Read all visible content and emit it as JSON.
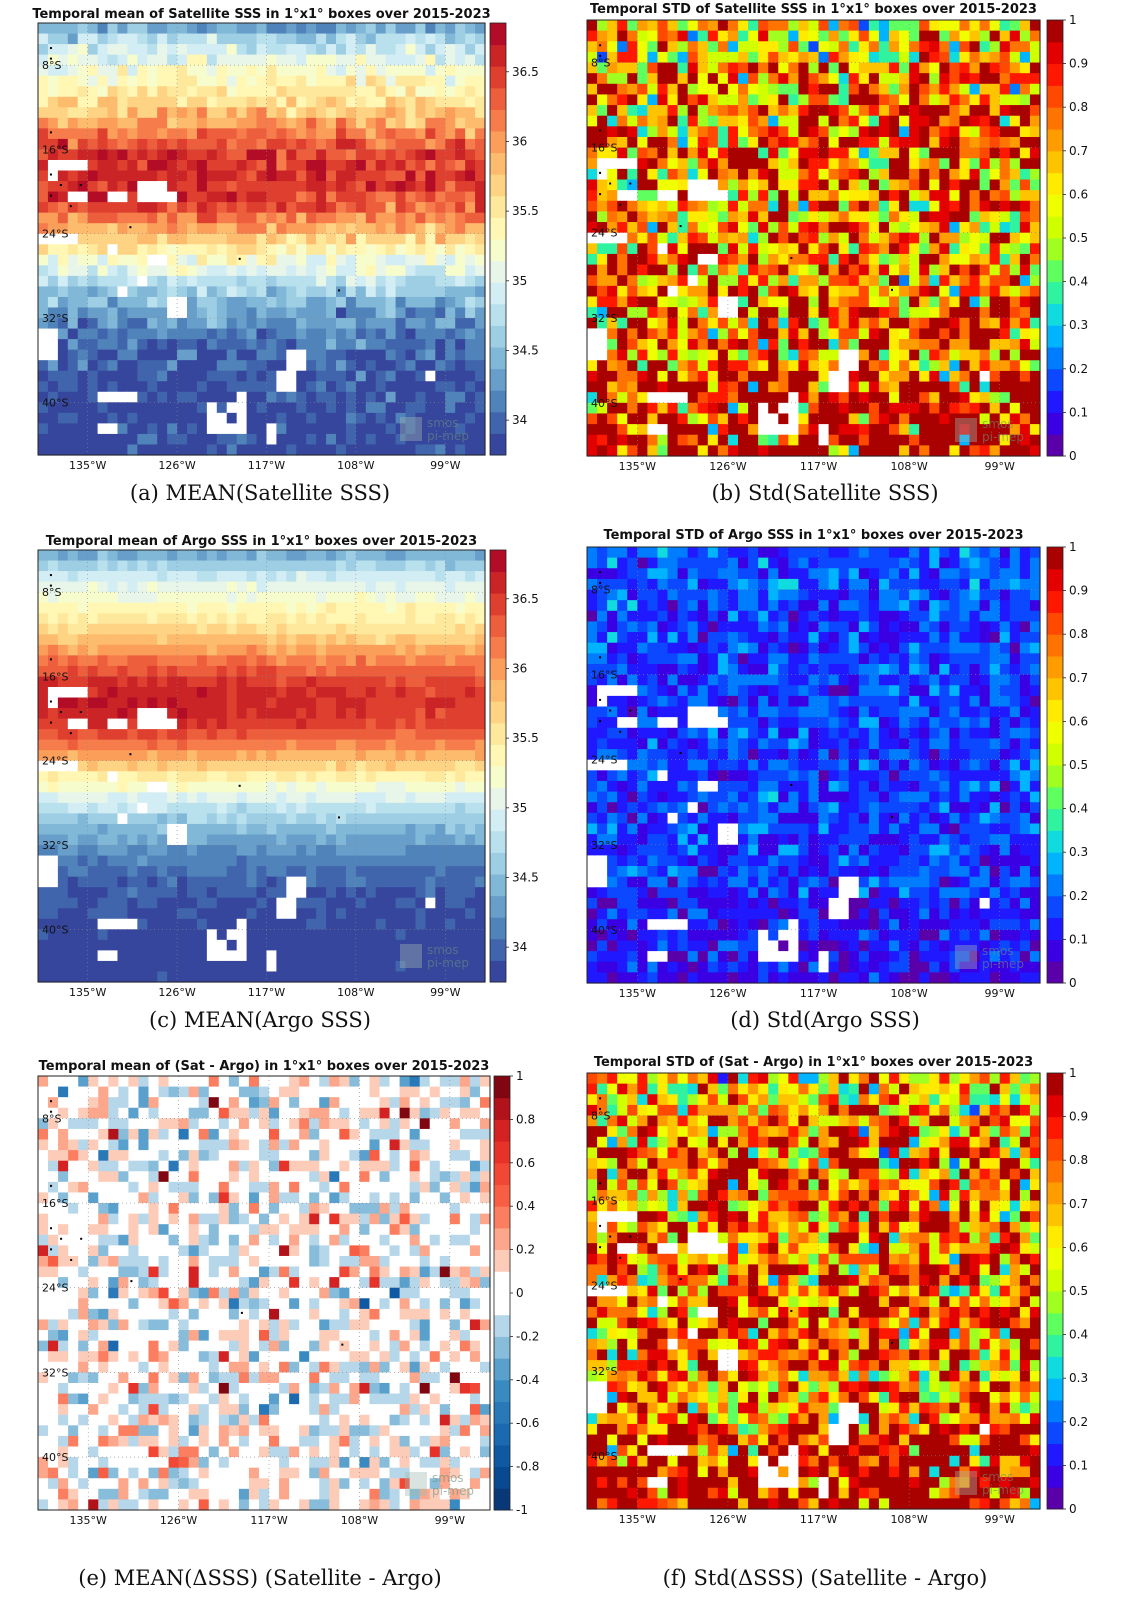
{
  "figure": {
    "lon_ticks": [
      "135°W",
      "126°W",
      "117°W",
      "108°W",
      "99°W"
    ],
    "lat_ticks": [
      "8°S",
      "16°S",
      "24°S",
      "32°S",
      "40°S"
    ],
    "watermark": [
      "smos",
      "pi-mep"
    ],
    "grid": true
  },
  "chart_data": [
    {
      "type": "heatmap",
      "id": "a",
      "title": "Temporal mean of Satellite SSS in 1°x1° boxes over 2015-2023",
      "caption": "(a) MEAN(Satellite SSS)",
      "colormap": "RdYlBu_r",
      "clim": [
        33.75,
        36.85
      ],
      "colorbar_ticks": [
        34,
        34.5,
        35,
        35.5,
        36,
        36.5
      ],
      "colorbar_labels": [
        "34",
        "34.5",
        "35",
        "35.5",
        "36",
        "36.5"
      ],
      "lon_range": [
        -140,
        -95
      ],
      "lat_range": [
        -45,
        -4
      ],
      "grid": true,
      "field": "mean_sat"
    },
    {
      "type": "heatmap",
      "id": "b",
      "title": "Temporal STD of Satellite SSS in 1°x1° boxes over 2015-2023",
      "caption": "(b) Std(Satellite SSS)",
      "colormap": "jet",
      "clim": [
        0,
        1
      ],
      "colorbar_ticks": [
        0,
        0.1,
        0.2,
        0.3,
        0.4,
        0.5,
        0.6,
        0.7,
        0.8,
        0.9,
        1
      ],
      "colorbar_labels": [
        "0",
        "0.1",
        "0.2",
        "0.3",
        "0.4",
        "0.5",
        "0.6",
        "0.7",
        "0.8",
        "0.9",
        "1"
      ],
      "lon_range": [
        -140,
        -95
      ],
      "lat_range": [
        -45,
        -4
      ],
      "grid": true,
      "field": "std_sat"
    },
    {
      "type": "heatmap",
      "id": "c",
      "title": "Temporal mean of Argo SSS in 1°x1° boxes over 2015-2023",
      "caption": "(c) MEAN(Argo SSS)",
      "colormap": "RdYlBu_r",
      "clim": [
        33.75,
        36.85
      ],
      "colorbar_ticks": [
        34,
        34.5,
        35,
        35.5,
        36,
        36.5
      ],
      "colorbar_labels": [
        "34",
        "34.5",
        "35",
        "35.5",
        "36",
        "36.5"
      ],
      "lon_range": [
        -140,
        -95
      ],
      "lat_range": [
        -45,
        -4
      ],
      "grid": true,
      "field": "mean_argo"
    },
    {
      "type": "heatmap",
      "id": "d",
      "title": "Temporal STD of Argo SSS in 1°x1° boxes over 2015-2023",
      "caption": "(d) Std(Argo SSS)",
      "colormap": "jet",
      "clim": [
        0,
        1
      ],
      "colorbar_ticks": [
        0,
        0.1,
        0.2,
        0.3,
        0.4,
        0.5,
        0.6,
        0.7,
        0.8,
        0.9,
        1
      ],
      "colorbar_labels": [
        "0",
        "0.1",
        "0.2",
        "0.3",
        "0.4",
        "0.5",
        "0.6",
        "0.7",
        "0.8",
        "0.9",
        "1"
      ],
      "lon_range": [
        -140,
        -95
      ],
      "lat_range": [
        -45,
        -4
      ],
      "grid": true,
      "field": "std_argo"
    },
    {
      "type": "heatmap",
      "id": "e",
      "title": "Temporal mean of (Sat - Argo) in 1°x1° boxes over 2015-2023",
      "caption": "(e) MEAN(ΔSSS) (Satellite - Argo)",
      "colormap": "diverging_blue_white_red",
      "clim": [
        -1,
        1
      ],
      "colorbar_ticks": [
        -1,
        -0.8,
        -0.6,
        -0.4,
        -0.2,
        0,
        0.2,
        0.4,
        0.6,
        0.8,
        1
      ],
      "colorbar_labels": [
        "-1",
        "-0.8",
        "-0.6",
        "-0.4",
        "-0.2",
        "0",
        "0.2",
        "0.4",
        "0.6",
        "0.8",
        "1"
      ],
      "lon_range": [
        -140,
        -95
      ],
      "lat_range": [
        -45,
        -4
      ],
      "grid": true,
      "field": "mean_diff"
    },
    {
      "type": "heatmap",
      "id": "f",
      "title": "Temporal STD of (Sat - Argo) in 1°x1° boxes over 2015-2023",
      "caption": "(f) Std(ΔSSS) (Satellite - Argo)",
      "colormap": "jet",
      "clim": [
        0,
        1
      ],
      "colorbar_ticks": [
        0,
        0.1,
        0.2,
        0.3,
        0.4,
        0.5,
        0.6,
        0.7,
        0.8,
        0.9,
        1
      ],
      "colorbar_labels": [
        "0",
        "0.1",
        "0.2",
        "0.3",
        "0.4",
        "0.5",
        "0.6",
        "0.7",
        "0.8",
        "0.9",
        "1"
      ],
      "lon_range": [
        -140,
        -95
      ],
      "lat_range": [
        -45,
        -4
      ],
      "grid": true,
      "field": "std_diff"
    }
  ]
}
